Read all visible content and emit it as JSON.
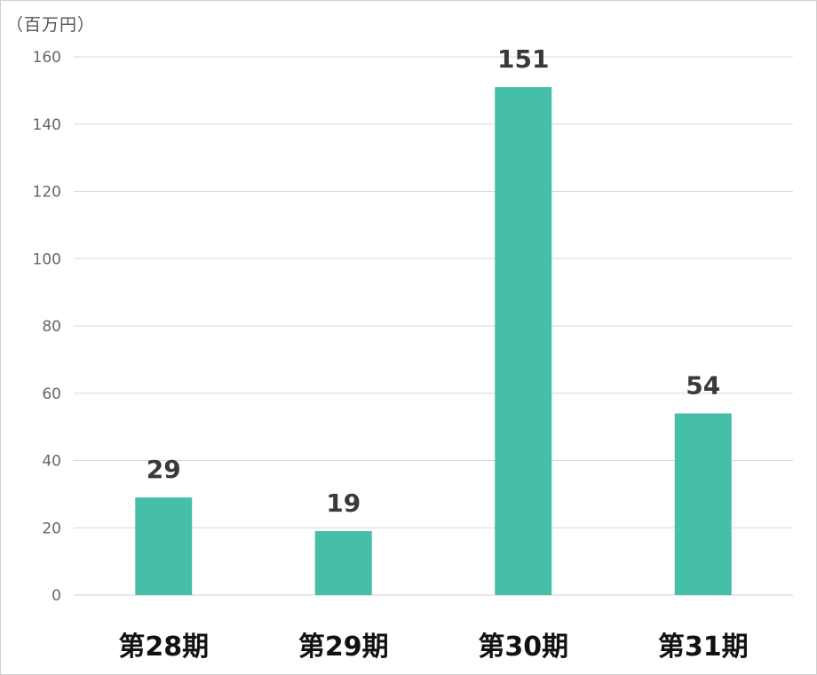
{
  "chart_data": {
    "type": "bar",
    "unit_label": "（百万円）",
    "categories": [
      "第28期",
      "第29期",
      "第30期",
      "第31期"
    ],
    "values": [
      29,
      19,
      151,
      54
    ],
    "data_labels": [
      "29",
      "19",
      "151",
      "54"
    ],
    "yticks": [
      "0",
      "20",
      "40",
      "60",
      "80",
      "100",
      "120",
      "140",
      "160"
    ],
    "ylim": [
      0,
      160
    ],
    "ytick_step": 20,
    "bar_color": "#45bfa8",
    "grid": true,
    "legend": "none",
    "title": "",
    "xlabel": "",
    "ylabel": ""
  }
}
